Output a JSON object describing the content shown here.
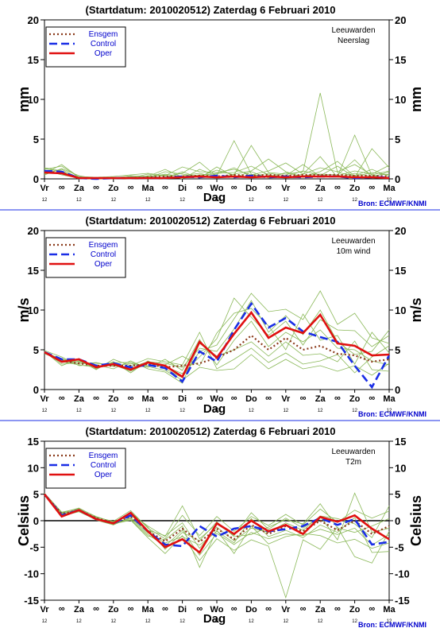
{
  "colors": {
    "ensgem": "#8b3a1a",
    "control": "#1a2ee6",
    "oper": "#e01010",
    "members": "#8ab858",
    "frame": "#000000",
    "separator": "#1a2ee6",
    "source": "#0000cc"
  },
  "common": {
    "title": "(Startdatum: 2010020512)   Zaterdag   6 Februari  2010",
    "xlabel": "Dag",
    "source": "Bron: ECMWF/KNMI",
    "location": "Leeuwarden",
    "legend": [
      "Ensgem",
      "Control",
      "Oper"
    ],
    "day_labels": [
      "Vr",
      "Za",
      "Zo",
      "Ma",
      "Di",
      "Wo",
      "Do",
      "Vr",
      "Za",
      "Zo",
      "Ma"
    ],
    "hour_label": "12",
    "night_marker": "∞"
  },
  "chart_data": [
    {
      "type": "line",
      "title": "(Startdatum: 2010020512)   Zaterdag   6 Februari  2010",
      "subtitle": "Neerslag",
      "xlabel": "Dag",
      "ylabel": "mm",
      "ylim": [
        0,
        20
      ],
      "yticks": [
        0,
        5,
        10,
        15,
        20
      ],
      "x": [
        "Vr",
        "",
        "Za",
        "",
        "Zo",
        "",
        "Ma",
        "",
        "Di",
        "",
        "Wo",
        "",
        "Do",
        "",
        "Vr",
        "",
        "Za",
        "",
        "Zo",
        "",
        "Ma"
      ],
      "series": [
        {
          "name": "Ensgem",
          "values": [
            0.9,
            0.8,
            0.1,
            0.1,
            0.1,
            0.1,
            0.2,
            0.3,
            0.3,
            0.4,
            0.3,
            0.5,
            0.4,
            0.5,
            0.4,
            0.5,
            0.5,
            0.5,
            0.4,
            0.4,
            0.3
          ]
        },
        {
          "name": "Control",
          "values": [
            1.0,
            0.9,
            0.1,
            0.0,
            0.1,
            0.1,
            0.1,
            0.1,
            0.3,
            0.2,
            0.4,
            0.2,
            0.4,
            0.2,
            0.3,
            0.2,
            0.3,
            0.3,
            0.1,
            0.2,
            0.2
          ]
        },
        {
          "name": "Oper",
          "values": [
            0.8,
            0.7,
            0.1,
            0.1,
            0.1,
            0.1,
            0.1,
            0.1,
            0.2,
            0.3,
            0.2,
            0.3,
            0.2,
            0.3,
            0.2,
            0.3,
            0.3,
            0.3,
            0.2,
            0.2,
            0.1
          ]
        }
      ],
      "members": [
        [
          1.2,
          1.6,
          0.2,
          0.0,
          0.1,
          0.0,
          0.3,
          0.5,
          0.0,
          1.2,
          0.4,
          4.8,
          0.6,
          0.2,
          0.3,
          1.0,
          0.5,
          0.3,
          5.5,
          0.4,
          0.6
        ],
        [
          0.6,
          1.2,
          0.1,
          0.1,
          0.0,
          0.2,
          0.1,
          0.9,
          0.6,
          0.3,
          1.1,
          0.5,
          4.2,
          0.8,
          0.6,
          0.9,
          10.8,
          0.8,
          0.4,
          1.2,
          0.3
        ],
        [
          0.9,
          0.7,
          0.3,
          0.2,
          0.3,
          0.5,
          0.7,
          0.4,
          1.5,
          0.9,
          0.8,
          1.2,
          0.5,
          1.0,
          2.0,
          0.6,
          1.4,
          0.9,
          1.8,
          0.5,
          1.0
        ],
        [
          1.4,
          1.0,
          0.0,
          0.0,
          0.2,
          0.1,
          0.0,
          0.2,
          0.4,
          0.7,
          0.2,
          0.6,
          1.0,
          2.5,
          0.9,
          0.2,
          0.4,
          1.6,
          0.2,
          3.8,
          1.4
        ],
        [
          0.7,
          1.8,
          0.2,
          0.1,
          0.1,
          0.0,
          0.4,
          0.1,
          0.9,
          0.1,
          1.5,
          0.3,
          0.2,
          0.4,
          0.1,
          0.6,
          2.8,
          0.2,
          0.7,
          0.3,
          0.2
        ],
        [
          1.1,
          0.5,
          0.1,
          0.0,
          0.0,
          0.3,
          0.2,
          0.6,
          0.3,
          0.5,
          0.6,
          1.4,
          0.3,
          0.7,
          0.4,
          1.8,
          0.3,
          0.4,
          1.0,
          0.6,
          1.7
        ],
        [
          0.5,
          1.3,
          0.4,
          0.0,
          0.2,
          0.1,
          0.6,
          0.3,
          0.7,
          2.1,
          0.3,
          0.2,
          0.9,
          0.1,
          0.8,
          0.3,
          0.9,
          2.2,
          0.3,
          0.8,
          0.5
        ],
        [
          1.3,
          0.9,
          0.0,
          0.1,
          0.1,
          0.4,
          0.3,
          1.2,
          0.2,
          0.4,
          0.7,
          0.8,
          1.6,
          0.5,
          0.2,
          0.4,
          0.6,
          0.5,
          2.4,
          0.2,
          0.9
        ]
      ]
    },
    {
      "type": "line",
      "title": "(Startdatum: 2010020512)   Zaterdag   6 Februari  2010",
      "subtitle": "10m wind",
      "xlabel": "Dag",
      "ylabel": "m/s",
      "ylim": [
        0,
        20
      ],
      "yticks": [
        0,
        5,
        10,
        15,
        20
      ],
      "x": [
        "Vr",
        "",
        "Za",
        "",
        "Zo",
        "",
        "Ma",
        "",
        "Di",
        "",
        "Wo",
        "",
        "Do",
        "",
        "Vr",
        "",
        "Za",
        "",
        "Zo",
        "",
        "Ma"
      ],
      "series": [
        {
          "name": "Ensgem",
          "values": [
            4.7,
            3.6,
            3.3,
            3.0,
            3.0,
            3.0,
            3.2,
            2.8,
            3.0,
            3.3,
            4.0,
            5.0,
            6.8,
            5.0,
            6.5,
            5.0,
            5.5,
            4.5,
            4.3,
            3.5,
            3.8
          ]
        },
        {
          "name": "Control",
          "values": [
            4.7,
            3.8,
            3.8,
            3.0,
            3.3,
            2.8,
            3.1,
            2.7,
            1.0,
            4.8,
            3.5,
            7.5,
            10.8,
            7.8,
            9.0,
            7.3,
            6.6,
            6.0,
            3.0,
            0.3,
            4.3
          ]
        },
        {
          "name": "Oper",
          "values": [
            4.7,
            3.5,
            3.8,
            2.8,
            3.2,
            2.5,
            3.4,
            3.0,
            1.6,
            6.0,
            4.0,
            7.0,
            9.7,
            6.5,
            7.8,
            7.1,
            9.4,
            5.8,
            5.5,
            4.3,
            4.4
          ]
        }
      ],
      "members": [
        [
          4.8,
          3.0,
          3.9,
          2.6,
          3.5,
          2.1,
          3.6,
          2.6,
          1.5,
          4.8,
          5.6,
          8.9,
          12.1,
          9.8,
          10.1,
          8.8,
          12.4,
          8.2,
          9.6,
          6.5,
          5.8
        ],
        [
          4.6,
          3.9,
          3.2,
          3.4,
          2.9,
          3.3,
          2.8,
          3.8,
          2.4,
          6.3,
          3.1,
          6.2,
          8.6,
          5.4,
          7.2,
          6.0,
          7.5,
          5.2,
          5.0,
          3.6,
          3.1
        ],
        [
          4.7,
          3.4,
          3.6,
          2.9,
          3.2,
          2.7,
          3.1,
          3.1,
          4.2,
          3.0,
          7.1,
          9.6,
          10.2,
          8.0,
          5.0,
          9.5,
          6.2,
          6.8,
          3.2,
          7.2,
          4.6
        ],
        [
          4.9,
          4.1,
          3.0,
          3.1,
          2.6,
          3.6,
          2.6,
          2.2,
          0.8,
          5.8,
          4.2,
          5.0,
          6.0,
          4.2,
          6.0,
          4.3,
          4.5,
          3.5,
          6.1,
          2.5,
          2.3
        ],
        [
          4.5,
          3.7,
          3.7,
          2.5,
          3.8,
          3.0,
          3.9,
          3.5,
          3.1,
          7.2,
          2.6,
          3.8,
          5.2,
          3.4,
          4.6,
          3.2,
          3.6,
          4.4,
          2.1,
          4.1,
          5.5
        ],
        [
          4.8,
          3.2,
          3.4,
          3.3,
          3.1,
          2.3,
          3.3,
          2.9,
          2.0,
          4.1,
          6.4,
          11.5,
          9.1,
          6.8,
          8.6,
          5.6,
          8.8,
          7.5,
          7.4,
          5.4,
          6.8
        ],
        [
          4.7,
          3.5,
          3.1,
          2.8,
          3.4,
          3.4,
          2.9,
          2.4,
          1.2,
          2.8,
          2.4,
          2.6,
          4.4,
          2.6,
          3.8,
          2.6,
          3.0,
          2.3,
          3.0,
          1.8,
          3.3
        ],
        [
          4.6,
          3.8,
          3.5,
          3.0,
          3.0,
          2.8,
          3.5,
          3.3,
          2.8,
          5.2,
          4.8,
          7.6,
          11.2,
          7.2,
          9.3,
          6.9,
          10.0,
          6.0,
          4.4,
          4.8,
          7.5
        ]
      ]
    },
    {
      "type": "line",
      "title": "(Startdatum: 2010020512)   Zaterdag   6 Februari  2010",
      "subtitle": "T2m",
      "xlabel": "Dag",
      "ylabel": "Celsius",
      "ylim": [
        -15,
        15
      ],
      "yticks": [
        -15,
        -10,
        -5,
        0,
        5,
        10,
        15
      ],
      "x": [
        "Vr",
        "",
        "Za",
        "",
        "Zo",
        "",
        "Ma",
        "",
        "Di",
        "",
        "Wo",
        "",
        "Do",
        "",
        "Vr",
        "",
        "Za",
        "",
        "Zo",
        "",
        "Ma"
      ],
      "series": [
        {
          "name": "Ensgem",
          "values": [
            5.0,
            1.3,
            2.0,
            0.5,
            -0.4,
            0.8,
            -1.9,
            -3.9,
            -1.5,
            -4.0,
            -1.5,
            -3.5,
            -0.8,
            -2.5,
            -1.0,
            -2.0,
            0.0,
            -1.8,
            0.0,
            -2.5,
            -1.0
          ]
        },
        {
          "name": "Control",
          "values": [
            5.0,
            1.0,
            2.0,
            0.3,
            -0.5,
            1.0,
            -2.0,
            -4.5,
            -4.8,
            -1.0,
            -3.0,
            -1.5,
            -1.0,
            -2.0,
            -1.6,
            -1.0,
            0.5,
            -0.8,
            0.3,
            -4.5,
            -4.0
          ]
        },
        {
          "name": "Oper",
          "values": [
            5.0,
            0.8,
            2.0,
            0.3,
            -0.5,
            1.5,
            -2.0,
            -5.0,
            -3.5,
            -6.0,
            -0.5,
            -2.5,
            0.0,
            -2.0,
            -0.8,
            -2.5,
            0.7,
            -0.2,
            1.0,
            -1.5,
            -3.5
          ]
        }
      ],
      "members": [
        [
          5.2,
          1.6,
          2.3,
          0.8,
          -0.3,
          1.4,
          -1.0,
          -3.0,
          2.8,
          -3.4,
          -0.6,
          -2.8,
          1.5,
          -1.6,
          0.5,
          -1.4,
          0.8,
          -3.6,
          5.2,
          -2.2,
          -1.4
        ],
        [
          4.9,
          0.9,
          1.7,
          0.2,
          -0.7,
          0.4,
          -2.6,
          -4.8,
          -1.8,
          -6.5,
          -2.4,
          -4.5,
          -2.2,
          -3.4,
          -2.5,
          -2.8,
          -1.6,
          -2.6,
          -1.4,
          -4.6,
          -2.6
        ],
        [
          5.0,
          1.4,
          2.1,
          0.6,
          -0.1,
          1.9,
          -1.4,
          -3.4,
          1.0,
          -2.8,
          0.8,
          -2.0,
          0.8,
          -0.9,
          1.2,
          -0.8,
          2.2,
          -0.3,
          2.0,
          0.5,
          1.8
        ],
        [
          5.1,
          1.2,
          1.9,
          0.4,
          -0.6,
          0.1,
          -3.2,
          -6.2,
          -2.8,
          -7.5,
          -3.4,
          -5.6,
          -3.6,
          -4.8,
          -14.5,
          -3.6,
          -5.4,
          -1.2,
          -6.8,
          -8.0,
          -2.0
        ],
        [
          4.8,
          1.5,
          2.4,
          0.7,
          -0.2,
          1.1,
          -1.8,
          -2.8,
          -0.4,
          -5.2,
          -1.2,
          -3.8,
          -1.4,
          -2.2,
          -0.4,
          -1.8,
          0.9,
          0.4,
          -0.6,
          -3.2,
          2.8
        ],
        [
          5.0,
          1.1,
          1.8,
          0.1,
          -0.8,
          0.6,
          -2.3,
          -4.2,
          -3.0,
          -4.6,
          -2.0,
          -4.2,
          0.4,
          -3.0,
          -1.8,
          -3.2,
          -0.8,
          -2.2,
          0.6,
          -6.0,
          -5.8
        ],
        [
          4.9,
          1.3,
          2.2,
          0.5,
          -0.4,
          1.6,
          -1.2,
          -5.4,
          -2.2,
          -3.8,
          -0.2,
          -3.0,
          -2.6,
          -1.2,
          0.2,
          -0.6,
          3.2,
          -1.4,
          -2.2,
          -1.0,
          0.4
        ],
        [
          5.1,
          1.0,
          2.0,
          0.3,
          -0.5,
          0.2,
          -2.9,
          -3.6,
          -1.0,
          -8.8,
          -1.8,
          -6.2,
          -1.0,
          -4.4,
          -3.0,
          -2.4,
          -2.8,
          -4.2,
          -3.5,
          -5.2,
          -4.2
        ]
      ]
    }
  ]
}
